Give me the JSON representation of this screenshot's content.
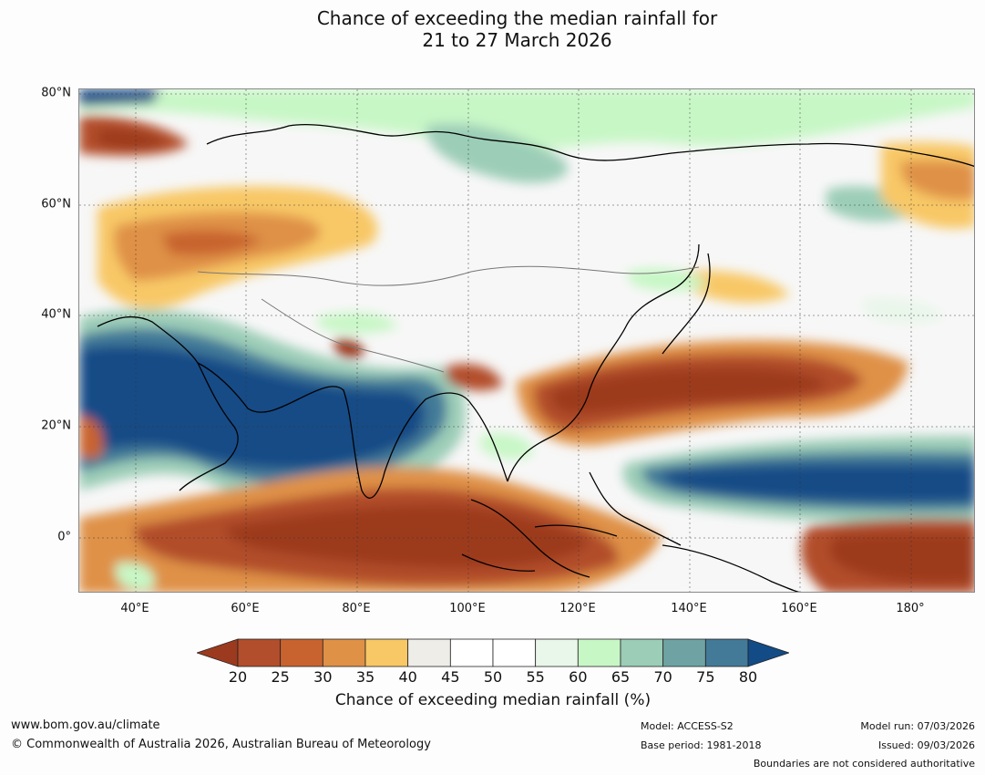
{
  "title": {
    "line1": "Chance of exceeding the median rainfall for",
    "line2": "21 to 27 March 2026"
  },
  "map": {
    "lat_labels": [
      "80°N",
      "60°N",
      "40°N",
      "20°N",
      "0°"
    ],
    "lon_labels": [
      "40°E",
      "60°E",
      "80°E",
      "100°E",
      "120°E",
      "140°E",
      "160°E",
      "180°"
    ],
    "lat_range": [
      -10,
      80
    ],
    "lon_range": [
      30,
      191
    ]
  },
  "colorbar": {
    "ticks": [
      "20",
      "25",
      "30",
      "35",
      "40",
      "45",
      "50",
      "55",
      "60",
      "65",
      "70",
      "75",
      "80"
    ],
    "colors": [
      "#9c3a1f",
      "#b24e2b",
      "#c8632f",
      "#df9146",
      "#f8c866",
      "#efede8",
      "#ffffff",
      "#ffffff",
      "#e9f6ea",
      "#c8f7c6",
      "#9ccdb7",
      "#6fa3a3",
      "#437a98",
      "#124b86"
    ],
    "label": "Chance of exceeding median rainfall (%)"
  },
  "footer": {
    "url": "www.bom.gov.au/climate",
    "copyright": "© Commonwealth of Australia 2026, Australian Bureau of Meteorology",
    "model": "Model: ACCESS-S2",
    "base_period": "Base period: 1981-2018",
    "model_run": "Model run: 07/03/2026",
    "issued": "Issued: 09/03/2026",
    "boundaries": "Boundaries are not considered authoritative"
  }
}
